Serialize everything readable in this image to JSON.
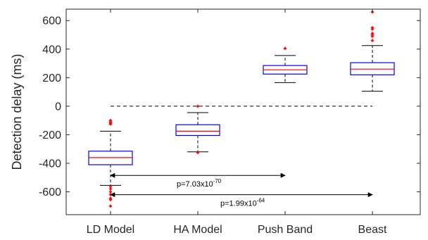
{
  "chart_data": {
    "type": "box",
    "ylabel": "Detection delay (ms)",
    "ylim": [
      -760,
      680
    ],
    "yticks": [
      -600,
      -400,
      -200,
      0,
      200,
      400,
      600
    ],
    "ytick_labels": [
      "-600",
      "-400",
      "-200",
      "0",
      "200",
      "400",
      "600"
    ],
    "categories": [
      "LD Model",
      "HA Model",
      "Push Band",
      "Beast"
    ],
    "boxes": [
      {
        "category": "LD Model",
        "q1": -410,
        "median": -360,
        "q3": -315,
        "whisker_low": -555,
        "whisker_high": -175,
        "outliers": [
          -100,
          -110,
          -120,
          -125,
          -565,
          -580,
          -600,
          -620,
          -645,
          -655,
          -700
        ]
      },
      {
        "category": "HA Model",
        "q1": -205,
        "median": -175,
        "q3": -130,
        "whisker_low": -320,
        "whisker_high": -45,
        "outliers": [
          0,
          -325
        ]
      },
      {
        "category": "Push Band",
        "q1": 225,
        "median": 255,
        "q3": 285,
        "whisker_low": 165,
        "whisker_high": 355,
        "outliers": [
          405
        ]
      },
      {
        "category": "Beast",
        "q1": 220,
        "median": 260,
        "q3": 305,
        "whisker_low": 105,
        "whisker_high": 425,
        "outliers": [
          460,
          490,
          500,
          510,
          540,
          550,
          660
        ]
      }
    ],
    "reference_line": {
      "y": 0,
      "from_category": "LD Model",
      "to_category": "Beast",
      "style": "dashed"
    },
    "annotations": [
      {
        "from_category": "LD Model",
        "to_category": "Push Band",
        "y": -485,
        "label_base": "p=7.03x10",
        "label_exp": "-70"
      },
      {
        "from_category": "LD Model",
        "to_category": "Beast",
        "y": -620,
        "label_base": "p=1.99x10",
        "label_exp": "-64"
      }
    ],
    "colors": {
      "box": "#0000ff",
      "median": "#ff0000",
      "outlier": "#ff0000",
      "whisker": "#000000",
      "axis": "#262626"
    },
    "grid": false
  }
}
